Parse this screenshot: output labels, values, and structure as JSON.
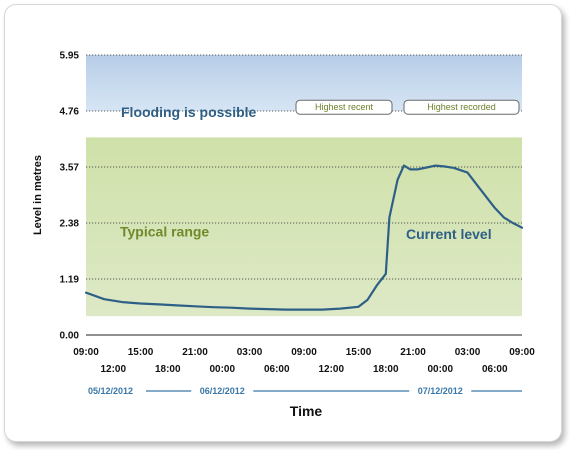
{
  "chart_data": {
    "type": "line",
    "ylabel": "Level in metres",
    "xlabel": "Time",
    "ylim": [
      0,
      5.95
    ],
    "y_ticks": [
      "0.00",
      "1.19",
      "2.38",
      "3.57",
      "4.76",
      "5.95"
    ],
    "x_range_hours": [
      0,
      48
    ],
    "x_ticks_top": [
      "09:00",
      "15:00",
      "21:00",
      "03:00",
      "09:00",
      "15:00",
      "21:00",
      "03:00",
      "09:00"
    ],
    "x_ticks_bottom": [
      "12:00",
      "18:00",
      "00:00",
      "06:00",
      "12:00",
      "18:00",
      "00:00",
      "06:00"
    ],
    "dates": [
      "05/12/2012",
      "06/12/2012",
      "07/12/2012"
    ],
    "grid": "horizontal dotted",
    "bands": [
      {
        "name": "Flooding is possible",
        "from": 4.76,
        "to": 5.95,
        "color": "#c5d9ee"
      },
      {
        "name": "Typical range",
        "from": 0.4,
        "to": 4.2,
        "color": "#d6e6b8"
      }
    ],
    "reference_lines": [
      {
        "name": "Highest recent",
        "value": 4.84
      },
      {
        "name": "Highest recorded",
        "value": 4.84
      }
    ],
    "series": [
      {
        "name": "Current level",
        "color": "#2e5f86",
        "points": [
          [
            0,
            0.9
          ],
          [
            2,
            0.76
          ],
          [
            4,
            0.7
          ],
          [
            6,
            0.67
          ],
          [
            8,
            0.65
          ],
          [
            10,
            0.63
          ],
          [
            12,
            0.61
          ],
          [
            14,
            0.59
          ],
          [
            16,
            0.58
          ],
          [
            18,
            0.56
          ],
          [
            20,
            0.55
          ],
          [
            22,
            0.54
          ],
          [
            24,
            0.54
          ],
          [
            26,
            0.54
          ],
          [
            28,
            0.56
          ],
          [
            30,
            0.6
          ],
          [
            31,
            0.75
          ],
          [
            32,
            1.05
          ],
          [
            33,
            1.3
          ],
          [
            33.4,
            2.5
          ],
          [
            34.3,
            3.3
          ],
          [
            35,
            3.6
          ],
          [
            35.7,
            3.52
          ],
          [
            36.5,
            3.52
          ],
          [
            37.5,
            3.56
          ],
          [
            38.5,
            3.6
          ],
          [
            39.5,
            3.58
          ],
          [
            40.5,
            3.55
          ],
          [
            42,
            3.45
          ],
          [
            43,
            3.2
          ],
          [
            44,
            2.95
          ],
          [
            45,
            2.7
          ],
          [
            46,
            2.5
          ],
          [
            47,
            2.38
          ],
          [
            48,
            2.28
          ]
        ]
      }
    ]
  }
}
